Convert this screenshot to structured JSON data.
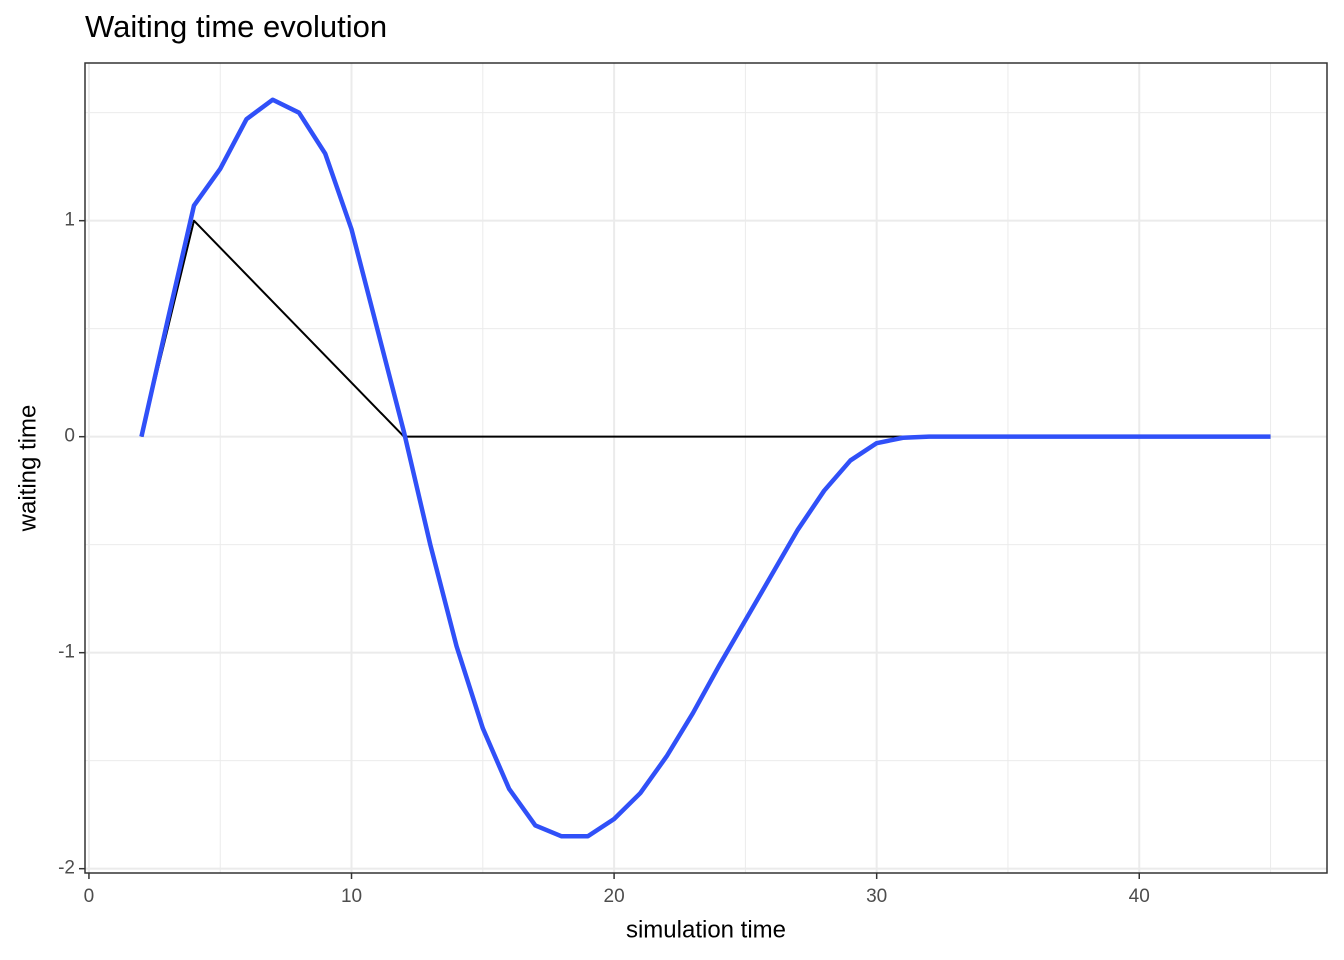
{
  "chart_data": {
    "type": "line",
    "title": "Waiting time evolution",
    "xlabel": "simulation time",
    "ylabel": "waiting time",
    "xlim": [
      -0.15,
      47.15
    ],
    "ylim": [
      -2.02,
      1.73
    ],
    "xticks": [
      0,
      10,
      20,
      30,
      40
    ],
    "yticks": [
      -2,
      -1,
      0,
      1
    ],
    "grid": true,
    "series": [
      {
        "color": "#000000",
        "x": [
          2,
          4,
          12,
          32,
          45
        ],
        "values": [
          0,
          1,
          0,
          0,
          0
        ]
      },
      {
        "color": "#3050f8",
        "x": [
          2,
          3,
          4,
          5,
          6,
          7,
          8,
          9,
          10,
          11,
          12,
          13,
          14,
          15,
          16,
          17,
          18,
          19,
          20,
          21,
          22,
          23,
          24,
          25,
          26,
          27,
          28,
          29,
          30,
          31,
          32,
          45
        ],
        "values": [
          0,
          0.54,
          1.07,
          1.24,
          1.47,
          1.56,
          1.5,
          1.31,
          0.96,
          0.49,
          0.02,
          -0.5,
          -0.97,
          -1.35,
          -1.63,
          -1.8,
          -1.85,
          -1.85,
          -1.77,
          -1.65,
          -1.48,
          -1.28,
          -1.06,
          -0.85,
          -0.64,
          -0.43,
          -0.25,
          -0.11,
          -0.03,
          -0.005,
          0,
          0
        ]
      }
    ]
  }
}
